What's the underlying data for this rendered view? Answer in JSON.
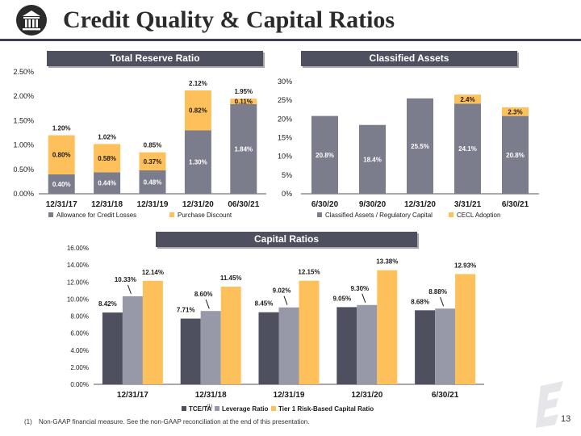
{
  "page": {
    "title": "Credit Quality & Capital Ratios",
    "page_number": "13",
    "footnote_marker": "(1)",
    "footnote_text": "Non-GAAP financial measure. See the non-GAAP reconciliation at the end of this presentation."
  },
  "colors": {
    "dark": "#4e5060",
    "gray": "#7c7d8c",
    "light_gray": "#9798a8",
    "gold": "#fec05a",
    "header_bg": "#4e5060"
  },
  "icons": [
    "bank-building-icon",
    "company-logo-watermark-icon"
  ],
  "chart_data": [
    {
      "id": "reserve",
      "type": "bar",
      "stacked": true,
      "title": "Total Reserve Ratio",
      "categories": [
        "12/31/17",
        "12/31/18",
        "12/31/19",
        "12/31/20",
        "06/30/21"
      ],
      "series": [
        {
          "name": "Allowance for Credit Losses",
          "values": [
            0.4,
            0.44,
            0.48,
            1.3,
            1.84
          ],
          "labels": [
            "0.40%",
            "0.44%",
            "0.48%",
            "1.30%",
            "1.84%"
          ]
        },
        {
          "name": "Purchase Discount",
          "values": [
            0.8,
            0.58,
            0.37,
            0.82,
            0.11
          ],
          "labels": [
            "0.80%",
            "0.58%",
            "0.37%",
            "0.82%",
            "0.11%"
          ]
        }
      ],
      "totals": [
        1.2,
        1.02,
        0.85,
        2.12,
        1.95
      ],
      "total_labels": [
        "1.20%",
        "1.02%",
        "0.85%",
        "2.12%",
        "1.95%"
      ],
      "ylim": [
        0,
        2.5
      ],
      "yticks": [
        "0.00%",
        "0.50%",
        "1.00%",
        "1.50%",
        "2.00%",
        "2.50%"
      ],
      "grid": false,
      "legend": "bottom"
    },
    {
      "id": "classified",
      "type": "bar",
      "stacked": true,
      "title": "Classified Assets",
      "categories": [
        "6/30/20",
        "9/30/20",
        "12/31/20",
        "3/31/21",
        "6/30/21"
      ],
      "series": [
        {
          "name": "Classified Assets / Regulatory Capital",
          "values": [
            20.8,
            18.4,
            25.5,
            24.1,
            20.8
          ],
          "labels": [
            "20.8%",
            "18.4%",
            "25.5%",
            "24.1%",
            "20.8%"
          ]
        },
        {
          "name": "CECL Adoption",
          "values": [
            0,
            0,
            0,
            2.4,
            2.3
          ],
          "labels": [
            "",
            "",
            "",
            "2.4%",
            "2.3%"
          ]
        }
      ],
      "ylim": [
        0,
        30
      ],
      "yticks": [
        "0%",
        "5%",
        "10%",
        "15%",
        "20%",
        "25%",
        "30%"
      ],
      "grid": false,
      "legend": "bottom"
    },
    {
      "id": "capital",
      "type": "bar",
      "stacked": false,
      "title": "Capital Ratios",
      "categories": [
        "12/31/17",
        "12/31/18",
        "12/31/19",
        "12/31/20",
        "6/30/21"
      ],
      "series": [
        {
          "name": "TCE/TA",
          "superscript": "(1)",
          "values": [
            8.42,
            7.71,
            8.45,
            9.05,
            8.68
          ],
          "labels": [
            "8.42%",
            "7.71%",
            "8.45%",
            "9.05%",
            "8.68%"
          ]
        },
        {
          "name": "Leverage Ratio",
          "values": [
            10.33,
            8.6,
            9.02,
            9.3,
            8.88
          ],
          "labels": [
            "10.33%",
            "8.60%",
            "9.02%",
            "9.30%",
            "8.88%"
          ]
        },
        {
          "name": "Tier 1 Risk-Based Capital Ratio",
          "values": [
            12.14,
            11.45,
            12.15,
            13.38,
            12.93
          ],
          "labels": [
            "12.14%",
            "11.45%",
            "12.15%",
            "13.38%",
            "12.93%"
          ]
        }
      ],
      "ylim": [
        0,
        16
      ],
      "yticks": [
        "0.00%",
        "2.00%",
        "4.00%",
        "6.00%",
        "8.00%",
        "10.00%",
        "12.00%",
        "14.00%",
        "16.00%"
      ],
      "grid": false,
      "legend": "bottom"
    }
  ]
}
